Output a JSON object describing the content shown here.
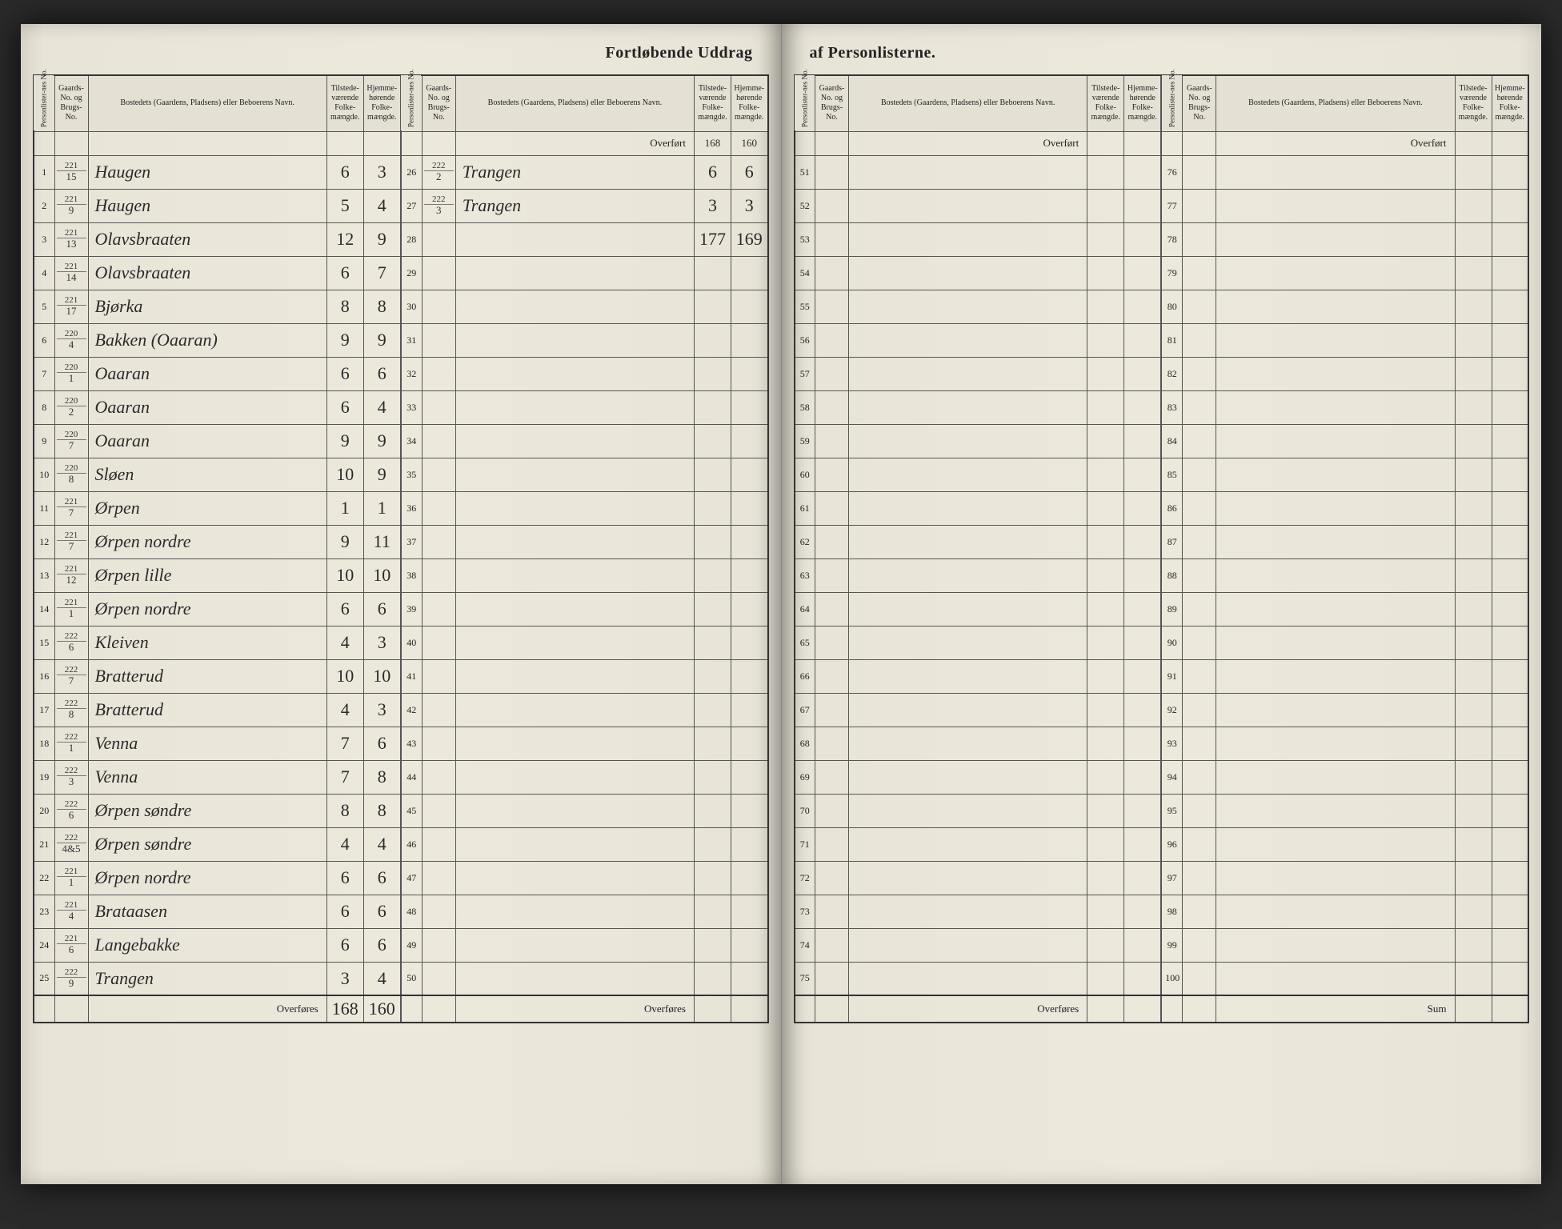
{
  "title_left": "Fortløbende Uddrag",
  "title_right": "af Personlisterne.",
  "headers": {
    "personliste": "Personlister-nes No.",
    "gaards": "Gaards-No. og Brugs-No.",
    "bosted": "Bostedets (Gaardens, Pladsens) eller Beboerens Navn.",
    "tilstede": "Tilstede-værende Folke-mængde.",
    "hjemme": "Hjemme-hørende Folke-mængde."
  },
  "overfort": "Overført",
  "overfores": "Overføres",
  "sum": "Sum",
  "left_panel1": {
    "rows": [
      {
        "no": "1",
        "g1": "221",
        "g2": "15",
        "name": "Haugen",
        "t": "6",
        "h": "3"
      },
      {
        "no": "2",
        "g1": "221",
        "g2": "9",
        "name": "Haugen",
        "t": "5",
        "h": "4"
      },
      {
        "no": "3",
        "g1": "221",
        "g2": "13",
        "name": "Olavsbraaten",
        "t": "12",
        "h": "9"
      },
      {
        "no": "4",
        "g1": "221",
        "g2": "14",
        "name": "Olavsbraaten",
        "t": "6",
        "h": "7"
      },
      {
        "no": "5",
        "g1": "221",
        "g2": "17",
        "name": "Bjørka",
        "t": "8",
        "h": "8"
      },
      {
        "no": "6",
        "g1": "220",
        "g2": "4",
        "name": "Bakken (Oaaran)",
        "t": "9",
        "h": "9"
      },
      {
        "no": "7",
        "g1": "220",
        "g2": "1",
        "name": "Oaaran",
        "t": "6",
        "h": "6"
      },
      {
        "no": "8",
        "g1": "220",
        "g2": "2",
        "name": "Oaaran",
        "t": "6",
        "h": "4"
      },
      {
        "no": "9",
        "g1": "220",
        "g2": "7",
        "name": "Oaaran",
        "t": "9",
        "h": "9"
      },
      {
        "no": "10",
        "g1": "220",
        "g2": "8",
        "name": "Sløen",
        "t": "10",
        "h": "9"
      },
      {
        "no": "11",
        "g1": "221",
        "g2": "7",
        "name": "Ørpen",
        "t": "1",
        "h": "1"
      },
      {
        "no": "12",
        "g1": "221",
        "g2": "7",
        "name": "Ørpen nordre",
        "t": "9",
        "h": "11"
      },
      {
        "no": "13",
        "g1": "221",
        "g2": "12",
        "name": "Ørpen lille",
        "t": "10",
        "h": "10"
      },
      {
        "no": "14",
        "g1": "221",
        "g2": "1",
        "name": "Ørpen nordre",
        "t": "6",
        "h": "6"
      },
      {
        "no": "15",
        "g1": "222",
        "g2": "6",
        "name": "Kleiven",
        "t": "4",
        "h": "3"
      },
      {
        "no": "16",
        "g1": "222",
        "g2": "7",
        "name": "Bratterud",
        "t": "10",
        "h": "10"
      },
      {
        "no": "17",
        "g1": "222",
        "g2": "8",
        "name": "Bratterud",
        "t": "4",
        "h": "3"
      },
      {
        "no": "18",
        "g1": "222",
        "g2": "1",
        "name": "Venna",
        "t": "7",
        "h": "6"
      },
      {
        "no": "19",
        "g1": "222",
        "g2": "3",
        "name": "Venna",
        "t": "7",
        "h": "8"
      },
      {
        "no": "20",
        "g1": "222",
        "g2": "6",
        "name": "Ørpen søndre",
        "t": "8",
        "h": "8"
      },
      {
        "no": "21",
        "g1": "222",
        "g2": "4&5",
        "name": "Ørpen søndre",
        "t": "4",
        "h": "4"
      },
      {
        "no": "22",
        "g1": "221",
        "g2": "1",
        "name": "Ørpen nordre",
        "t": "6",
        "h": "6"
      },
      {
        "no": "23",
        "g1": "221",
        "g2": "4",
        "name": "Brataasen",
        "t": "6",
        "h": "6"
      },
      {
        "no": "24",
        "g1": "221",
        "g2": "6",
        "name": "Langebakke",
        "t": "6",
        "h": "6"
      },
      {
        "no": "25",
        "g1": "222",
        "g2": "9",
        "name": "Trangen",
        "t": "3",
        "h": "4"
      }
    ],
    "overfores_t": "168",
    "overfores_h": "160"
  },
  "left_panel2": {
    "overfort_t": "168",
    "overfort_h": "160",
    "rows": [
      {
        "no": "26",
        "g1": "222",
        "g2": "2",
        "name": "Trangen",
        "t": "6",
        "h": "6"
      },
      {
        "no": "27",
        "g1": "222",
        "g2": "3",
        "name": "Trangen",
        "t": "3",
        "h": "3"
      }
    ],
    "sum_t": "177",
    "sum_h": "169",
    "empty_start": 28,
    "empty_end": 50
  },
  "right_panel1": {
    "empty_start": 51,
    "empty_end": 75
  },
  "right_panel2": {
    "empty_start": 76,
    "empty_end": 100
  }
}
